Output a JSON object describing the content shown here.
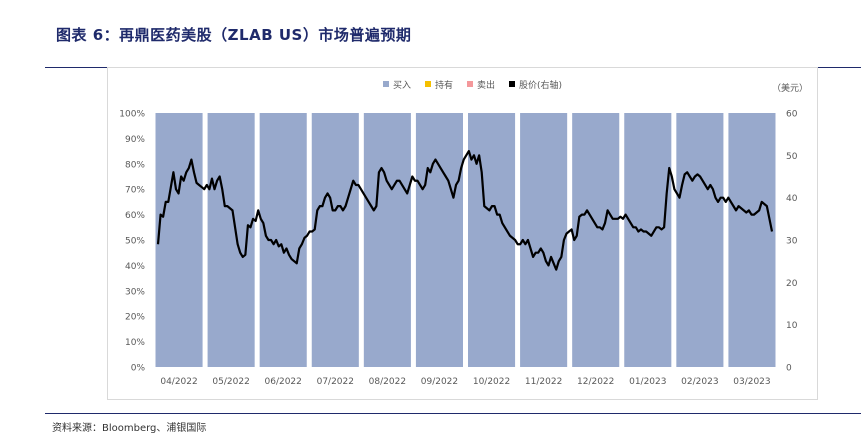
{
  "title": "图表 6：再鼎医药美股（ZLAB US）市场普遍预期",
  "source": "资料来源：Bloomberg、浦银国际",
  "colors": {
    "title": "#1f2a6b",
    "buy": "#98A9CC",
    "hold": "#F5C000",
    "sell": "#F4989B",
    "price": "#000000",
    "axis_text": "#595959"
  },
  "chart_data": {
    "type": "bar",
    "title": "",
    "right_axis_unit": "（美元）",
    "legend_position": "top",
    "legend": [
      {
        "name": "买入",
        "color": "#98A9CC"
      },
      {
        "name": "持有",
        "color": "#F5C000"
      },
      {
        "name": "卖出",
        "color": "#F4989B"
      },
      {
        "name": "股价(右轴)",
        "color": "#000000"
      }
    ],
    "categories": [
      "04/2022",
      "05/2022",
      "06/2022",
      "07/2022",
      "08/2022",
      "09/2022",
      "10/2022",
      "11/2022",
      "12/2022",
      "01/2023",
      "02/2023",
      "03/2023"
    ],
    "series": [
      {
        "name": "买入",
        "axis": "left",
        "values": [
          100,
          100,
          100,
          100,
          100,
          100,
          100,
          100,
          100,
          100,
          100,
          100
        ]
      },
      {
        "name": "持有",
        "axis": "left",
        "values": [
          0,
          0,
          0,
          0,
          0,
          0,
          0,
          0,
          0,
          0,
          0,
          0
        ]
      },
      {
        "name": "卖出",
        "axis": "left",
        "values": [
          0,
          0,
          0,
          0,
          0,
          0,
          0,
          0,
          0,
          0,
          0,
          0
        ]
      }
    ],
    "y_left": {
      "min": 0,
      "max": 100,
      "step": 10,
      "ticks": [
        "0%",
        "10%",
        "20%",
        "30%",
        "40%",
        "50%",
        "60%",
        "70%",
        "80%",
        "90%",
        "100%"
      ]
    },
    "y_right": {
      "min": 0,
      "max": 60,
      "step": 10,
      "ticks": [
        "0",
        "10",
        "20",
        "30",
        "40",
        "50",
        "60"
      ]
    },
    "grid": false,
    "price_line": {
      "name": "股价(右轴)",
      "axis": "right",
      "values": [
        29,
        36,
        35.5,
        39,
        39,
        42.5,
        46,
        42,
        41,
        45,
        44,
        46,
        47,
        49,
        46,
        43.5,
        43,
        42.5,
        42,
        43,
        42,
        44.5,
        42,
        44,
        45,
        42,
        38,
        38,
        37.5,
        37,
        33,
        29,
        27,
        26,
        26.5,
        33.5,
        33,
        35,
        34.5,
        37,
        35,
        34,
        31,
        30,
        30,
        29,
        30,
        28.5,
        29,
        27,
        28,
        26.5,
        25.5,
        25,
        24.5,
        28,
        29,
        30.5,
        31,
        32,
        32,
        32.5,
        37,
        38,
        38,
        40,
        41,
        40,
        37,
        37,
        38,
        38,
        37,
        38,
        40,
        42,
        44,
        43,
        43,
        42,
        41,
        40,
        39,
        38,
        37,
        38,
        46,
        47,
        46,
        44,
        43,
        42,
        43,
        44,
        44,
        43,
        42,
        41,
        43,
        45,
        44,
        44,
        43,
        42,
        43,
        47,
        46,
        48,
        49,
        48,
        47,
        46,
        45,
        44,
        42,
        40,
        43,
        44,
        47,
        49,
        50,
        51,
        49,
        50,
        48,
        50,
        46,
        38,
        37.5,
        37,
        38,
        38,
        36,
        36,
        34,
        33,
        32,
        31,
        30.5,
        30,
        29,
        29,
        30,
        29,
        30,
        28,
        26,
        27,
        27,
        28,
        27,
        25,
        24,
        26,
        24.5,
        23,
        25,
        26,
        30,
        31.5,
        32,
        32.5,
        30,
        31,
        35.5,
        36,
        36,
        37,
        36,
        35,
        34,
        33,
        33,
        32.5,
        34,
        37,
        36,
        35,
        35,
        35,
        35.5,
        35,
        36,
        35,
        34,
        33,
        33,
        32,
        32.5,
        32,
        32,
        31.5,
        31,
        32,
        33,
        33,
        32.5,
        33,
        41,
        47,
        45,
        42,
        41,
        40,
        43,
        45.5,
        46,
        45,
        44,
        45,
        45.5,
        45,
        44,
        43,
        42,
        43,
        42,
        40,
        39,
        40,
        40,
        39,
        40,
        39,
        38,
        37,
        38,
        37.5,
        37,
        36.5,
        37,
        36,
        36,
        36.5,
        37,
        39,
        38.5,
        38,
        35,
        32
      ]
    }
  }
}
